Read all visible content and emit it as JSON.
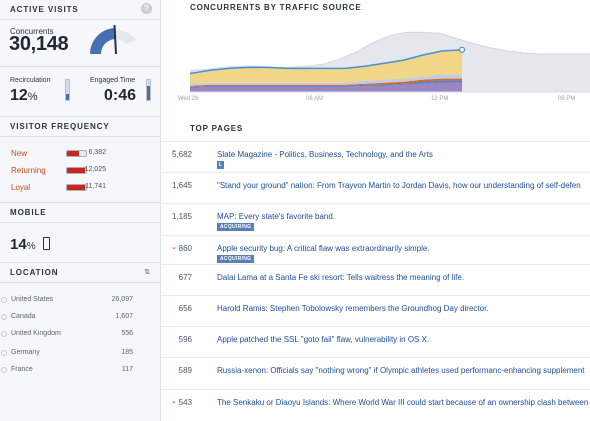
{
  "active_visits": {
    "title": "ACTIVE VISITS",
    "help_icon": "?",
    "concurrents_label": "Concurrents",
    "concurrents_value": "30,148",
    "recirculation_label": "Recirculation",
    "recirculation_value": "12",
    "recirculation_unit": "%",
    "recirculation_level": 0.3,
    "engaged_label": "Engaged Time",
    "engaged_value": "0:46",
    "engaged_level": 0.7,
    "gauge_level": 0.78,
    "colors": {
      "gauge": "#4a6fb0",
      "bar": "#4a6fb0"
    }
  },
  "visitor_frequency": {
    "title": "VISITOR FREQUENCY",
    "items": [
      {
        "label": "New",
        "count": "6,382",
        "level": 0.65
      },
      {
        "label": "Returning",
        "count": "12,025",
        "level": 0.95
      },
      {
        "label": "Loyal",
        "count": "11,741",
        "level": 0.93
      }
    ],
    "colors": {
      "label": "#c44a1e",
      "bar": "#c8261d"
    }
  },
  "mobile": {
    "title": "MOBILE",
    "value": "14",
    "unit": "%",
    "icon": "phone-icon"
  },
  "location": {
    "title": "LOCATION",
    "icon": "sort-icon",
    "items": [
      {
        "name": "United States",
        "count": "26,097"
      },
      {
        "name": "Canada",
        "count": "1,607"
      },
      {
        "name": "United Kingdom",
        "count": "556"
      },
      {
        "name": "Germany",
        "count": "185"
      },
      {
        "name": "France",
        "count": "117"
      }
    ]
  },
  "chart_data": {
    "type": "area",
    "title": "CONCURRENTS BY TRAFFIC SOURCE",
    "x_ticks": [
      "Wed 26",
      "06 AM",
      "12 PM",
      "06 PM"
    ],
    "colors": {
      "search": "#f1d68a",
      "social": "#c2cde2",
      "links": "#9a86c2",
      "internal": "#5a7fc8",
      "direct": "#d06a2a",
      "total_line": "#4a8fd0",
      "projection": "#e4e7eb"
    },
    "x": [
      0,
      1,
      2,
      3,
      4,
      5,
      6,
      7,
      8,
      9,
      10,
      11,
      12,
      13,
      14
    ],
    "series": [
      {
        "key": "links",
        "values": [
          4,
          5,
          5,
          5,
          5,
          5,
          5,
          5,
          5,
          6,
          6,
          7,
          8,
          9,
          9
        ]
      },
      {
        "key": "internal",
        "values": [
          1,
          1,
          1,
          1,
          1,
          1,
          1,
          1,
          1,
          1,
          1,
          1,
          2,
          2,
          2
        ]
      },
      {
        "key": "direct",
        "values": [
          1,
          1,
          1,
          1,
          1,
          1,
          1,
          1,
          1,
          1,
          2,
          2,
          2,
          2,
          2
        ]
      },
      {
        "key": "social",
        "values": [
          2,
          2,
          2,
          2,
          2,
          2,
          2,
          2,
          2,
          3,
          3,
          3,
          3,
          4,
          4
        ]
      },
      {
        "key": "search",
        "values": [
          10,
          12,
          14,
          15,
          15,
          14,
          14,
          14,
          14,
          14,
          16,
          18,
          21,
          23,
          24
        ]
      }
    ],
    "projection": [
      21,
      22,
      24,
      25,
      25,
      24,
      24,
      25,
      27,
      32,
      39,
      48,
      55,
      58,
      58,
      57,
      52,
      47,
      43,
      40,
      38,
      37,
      37,
      37,
      37
    ],
    "ylim": [
      0,
      70
    ]
  },
  "top_pages": {
    "title": "TOP PAGES",
    "badge": "ACQUIRING",
    "items": [
      {
        "count": "5,682",
        "title": "Slate Magazine - Politics, Business, Technology, and the Arts",
        "trend": "up",
        "badge": "L"
      },
      {
        "count": "1,645",
        "title": "\"Stand your ground\" nation: From Trayvon Martin to Jordan Davis, how our understanding of self-defen",
        "trend": "",
        "badge": ""
      },
      {
        "count": "1,185",
        "title": "MAP: Every state's favorite band.",
        "trend": "",
        "badge": "ACQUIRING"
      },
      {
        "count": "860",
        "title": "Apple security bug: A critical flaw was extraordinarily simple.",
        "trend": "down",
        "badge": "ACQUIRING"
      },
      {
        "count": "677",
        "title": "Dalai Lama at a Santa Fe ski resort: Tells waitress the meaning of life.",
        "trend": "",
        "badge": ""
      },
      {
        "count": "656",
        "title": "Harold Ramis: Stephen Tobolowsky remembers the Groundhog Day director.",
        "trend": "",
        "badge": ""
      },
      {
        "count": "596",
        "title": "Apple patched the SSL \"goto fail\" flaw, vulnerability in OS X.",
        "trend": "",
        "badge": ""
      },
      {
        "count": "589",
        "title": "Russia-xenon: Officials say \"nothing wrong\" if Olympic athletes used performanc-enhancing supplement",
        "trend": "",
        "badge": ""
      },
      {
        "count": "543",
        "title": "The Senkaku or Diaoyu Islands: Where World War III could start because of an ownership clash between",
        "trend": "down",
        "badge": ""
      }
    ],
    "arrows": {
      "up": "⌃",
      "down": "⌄"
    }
  }
}
